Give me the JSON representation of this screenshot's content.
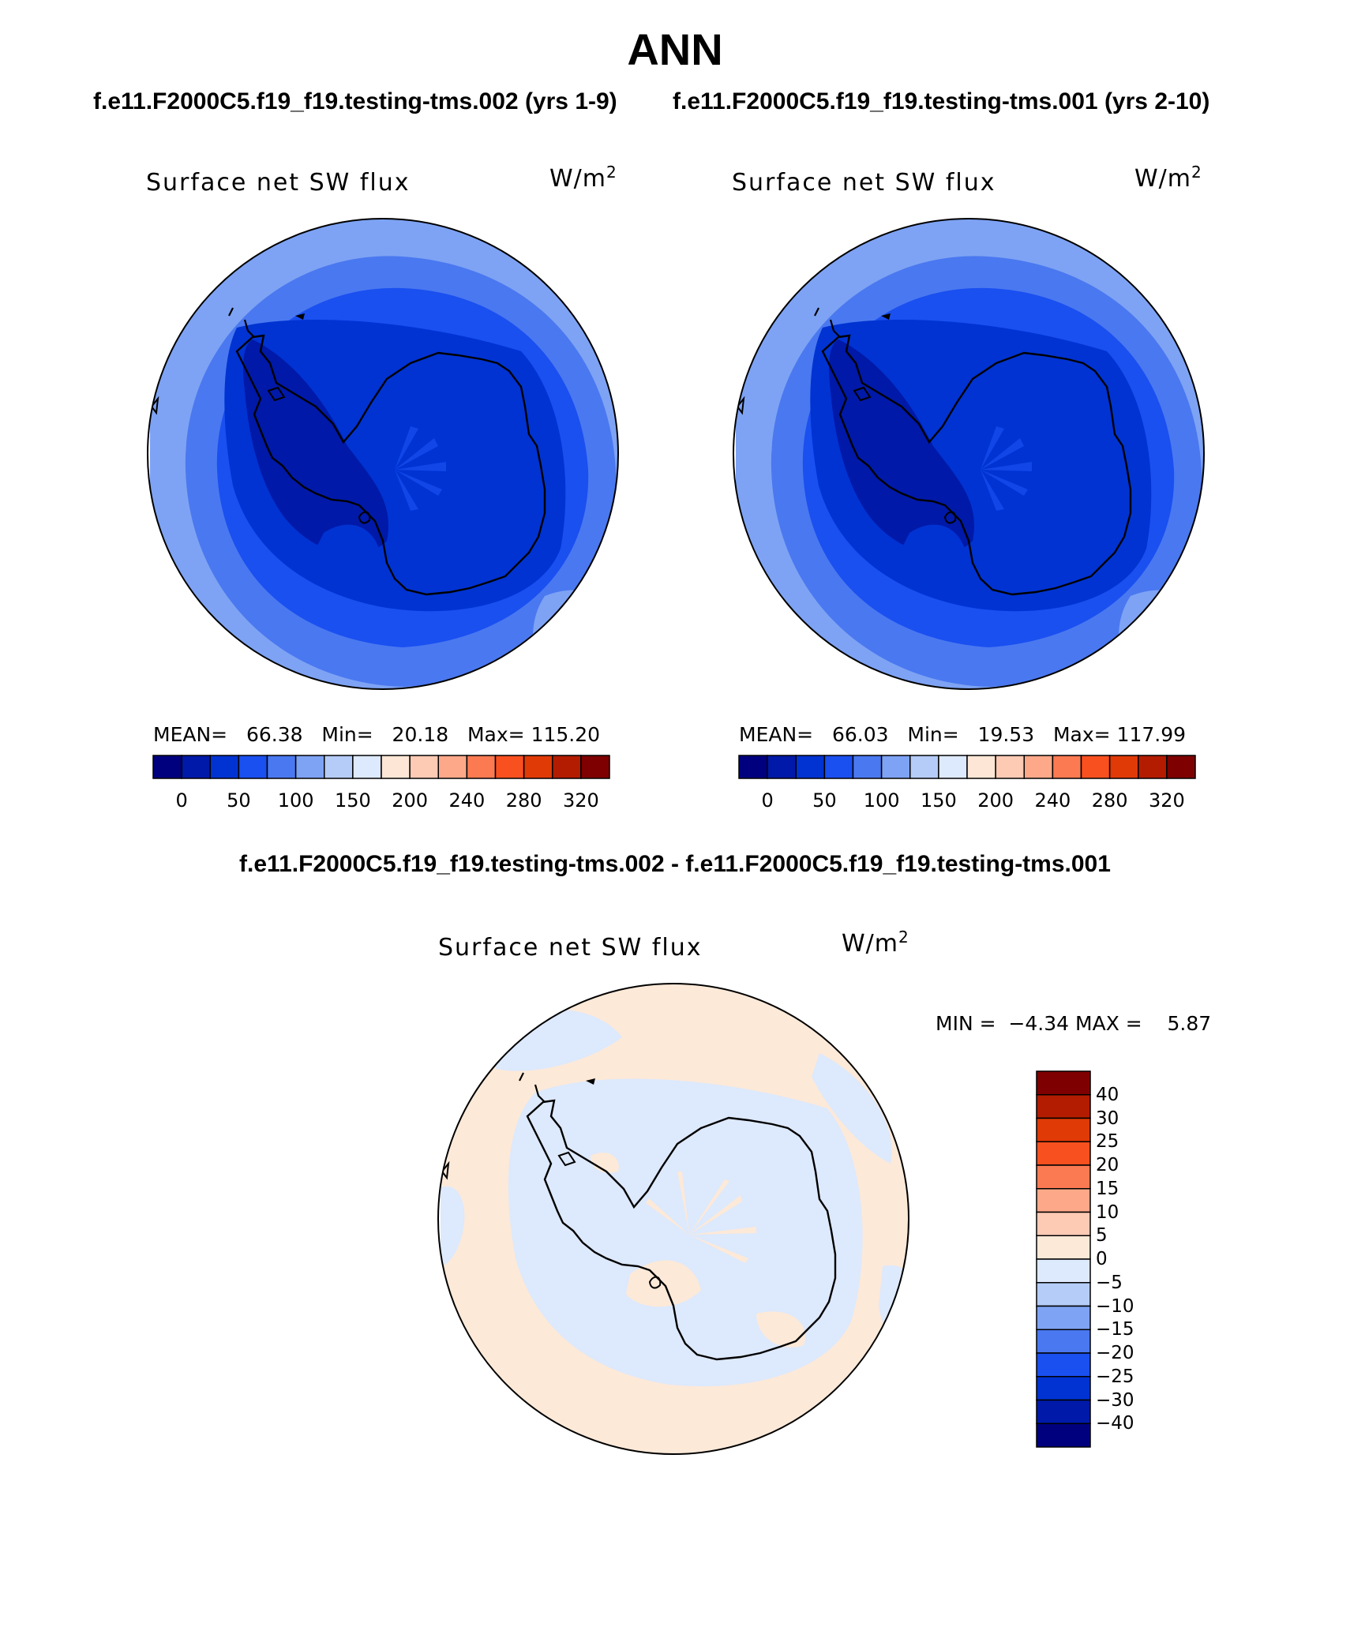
{
  "title": "ANN",
  "panels": [
    {
      "case": "f.e11.F2000C5.f19_f19.testing-tms.002 (yrs 1-9)",
      "variable": "Surface net SW flux",
      "units_base": "W/m",
      "units_exp": "2",
      "mean_label": "MEAN=",
      "mean": "66.38",
      "min_label": "Min=",
      "min": "20.18",
      "max_label": "Max=",
      "max": "115.20"
    },
    {
      "case": "f.e11.F2000C5.f19_f19.testing-tms.001 (yrs 2-10)",
      "variable": "Surface net SW flux",
      "units_base": "W/m",
      "units_exp": "2",
      "mean_label": "MEAN=",
      "mean": "66.03",
      "min_label": "Min=",
      "min": "19.53",
      "max_label": "Max=",
      "max": "117.99"
    }
  ],
  "abs_colorbar": {
    "colors": [
      "#00007f",
      "#0019a8",
      "#0033d2",
      "#1a4ff0",
      "#4a78f0",
      "#7ea3f4",
      "#b5ccf8",
      "#dde9fc",
      "#fde6d5",
      "#fdcab4",
      "#fca889",
      "#fb7a52",
      "#f9501f",
      "#e03a06",
      "#b31c00",
      "#7f0000"
    ],
    "labels": [
      "0",
      "50",
      "100",
      "150",
      "200",
      "240",
      "280",
      "320"
    ]
  },
  "diff": {
    "title": "f.e11.F2000C5.f19_f19.testing-tms.002 - f.e11.F2000C5.f19_f19.testing-tms.001",
    "variable": "Surface net SW flux",
    "units_base": "W/m",
    "units_exp": "2",
    "min_label": "MIN =",
    "min": "−4.34",
    "max_label": "MAX =",
    "max": "5.87",
    "colorbar": {
      "colors_top_to_bottom": [
        "#7f0000",
        "#b31c00",
        "#e03a06",
        "#f9501f",
        "#fb7a52",
        "#fca889",
        "#fdcab4",
        "#fde9d8",
        "#dde9fc",
        "#b5ccf8",
        "#7ea3f4",
        "#4a78f0",
        "#1a4ff0",
        "#0033d2",
        "#0019a8",
        "#00007f"
      ],
      "labels_top_to_bottom": [
        "40",
        "30",
        "25",
        "20",
        "15",
        "10",
        "5",
        "0",
        "−5",
        "−10",
        "−15",
        "−20",
        "−25",
        "−30",
        "−40"
      ]
    }
  }
}
